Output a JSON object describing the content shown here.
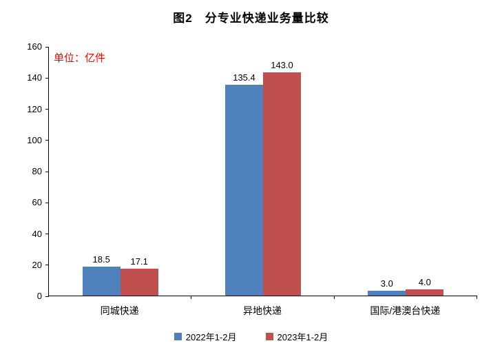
{
  "title": "图2　分专业快递业务量比较",
  "unit_label": "单位：亿件",
  "colors": {
    "unit_text": "#ff0000",
    "axis": "#000000",
    "series_2022": "#4f81bd",
    "series_2023": "#c0504d"
  },
  "chart_data": {
    "type": "bar",
    "title": "图2　分专业快递业务量比较",
    "unit": "亿件",
    "categories": [
      "同城快递",
      "异地快递",
      "国际/港澳台快递"
    ],
    "series": [
      {
        "name": "2022年1-2月",
        "color": "#4f81bd",
        "values": [
          18.5,
          135.4,
          3.0
        ]
      },
      {
        "name": "2023年1-2月",
        "color": "#c0504d",
        "values": [
          17.1,
          143.0,
          4.0
        ]
      }
    ],
    "xlabel": "",
    "ylabel": "",
    "ylim": [
      0,
      160
    ],
    "ytick_step": 20,
    "grid": false,
    "legend_position": "bottom",
    "data_labels": true
  }
}
